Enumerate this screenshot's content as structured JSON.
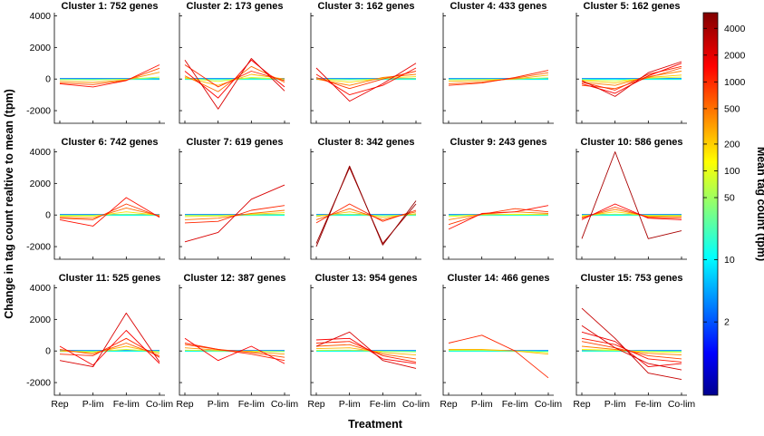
{
  "chart_data": {
    "type": "line",
    "layout": "small-multiples 3x5",
    "xlabel": "Treatment",
    "ylabel": "Change in tag count realtive to mean (tpm)",
    "categories": [
      "Rep",
      "P-lim",
      "Fe-lim",
      "Co-lim"
    ],
    "yticks": [
      "4000",
      "2000",
      "0",
      "-2000"
    ],
    "ylim": [
      -2800,
      4200
    ],
    "colorbar": {
      "label": "Mean tag count (tpm)",
      "scale": "log",
      "range": [
        0.3,
        6000
      ],
      "ticks": [
        {
          "value": 4000,
          "label": "4000"
        },
        {
          "value": 2000,
          "label": "2000"
        },
        {
          "value": 1000,
          "label": "1000"
        },
        {
          "value": 500,
          "label": "500"
        },
        {
          "value": 200,
          "label": "200"
        },
        {
          "value": 100,
          "label": "100"
        },
        {
          "value": 50,
          "label": "50"
        },
        {
          "value": 10,
          "label": "10"
        },
        {
          "value": 2,
          "label": "2"
        }
      ]
    },
    "panels": [
      {
        "title": "Cluster 1: 752 genes",
        "series": [
          {
            "mean": 1500,
            "values": [
              -300,
              -500,
              -100,
              900
            ]
          },
          {
            "mean": 800,
            "values": [
              -250,
              -350,
              -80,
              680
            ]
          },
          {
            "mean": 400,
            "values": [
              -150,
              -220,
              -60,
              430
            ]
          },
          {
            "mean": 80,
            "values": [
              -40,
              -60,
              -20,
              120
            ]
          },
          {
            "mean": 20,
            "values": [
              -10,
              -15,
              -5,
              30
            ]
          },
          {
            "mean": 4,
            "values": [
              0,
              0,
              0,
              0
            ]
          }
        ]
      },
      {
        "title": "Cluster 2: 173 genes",
        "series": [
          {
            "mean": 2500,
            "values": [
              1200,
              -1900,
              1300,
              -750
            ]
          },
          {
            "mean": 1800,
            "values": [
              500,
              -1200,
              1200,
              -500
            ]
          },
          {
            "mean": 1200,
            "values": [
              900,
              -500,
              500,
              -100
            ]
          },
          {
            "mean": 600,
            "values": [
              200,
              -800,
              800,
              -200
            ]
          },
          {
            "mean": 300,
            "values": [
              100,
              -400,
              300,
              0
            ]
          },
          {
            "mean": 100,
            "values": [
              50,
              -150,
              100,
              0
            ]
          },
          {
            "mean": 30,
            "values": [
              20,
              -40,
              30,
              -10
            ]
          }
        ]
      },
      {
        "title": "Cluster 3: 162 genes",
        "series": [
          {
            "mean": 2200,
            "values": [
              700,
              -1400,
              -300,
              1000
            ]
          },
          {
            "mean": 1500,
            "values": [
              300,
              -1000,
              -400,
              700
            ]
          },
          {
            "mean": 1000,
            "values": [
              100,
              -600,
              0,
              500
            ]
          },
          {
            "mean": 500,
            "values": [
              0,
              -400,
              100,
              300
            ]
          },
          {
            "mean": 200,
            "values": [
              0,
              -200,
              50,
              150
            ]
          },
          {
            "mean": 50,
            "values": [
              0,
              -50,
              20,
              30
            ]
          }
        ]
      },
      {
        "title": "Cluster 4: 433 genes",
        "series": [
          {
            "mean": 1200,
            "values": [
              -400,
              -250,
              100,
              550
            ]
          },
          {
            "mean": 700,
            "values": [
              -300,
              -200,
              50,
              400
            ]
          },
          {
            "mean": 300,
            "values": [
              -150,
              -100,
              0,
              250
            ]
          },
          {
            "mean": 80,
            "values": [
              -50,
              -30,
              0,
              80
            ]
          },
          {
            "mean": 10,
            "values": [
              -5,
              -5,
              0,
              10
            ]
          }
        ]
      },
      {
        "title": "Cluster 5: 162 genes",
        "series": [
          {
            "mean": 2500,
            "values": [
              -100,
              -1100,
              400,
              1100
            ]
          },
          {
            "mean": 1800,
            "values": [
              -300,
              -900,
              200,
              1000
            ]
          },
          {
            "mean": 1200,
            "values": [
              -200,
              -700,
              300,
              800
            ]
          },
          {
            "mean": 800,
            "values": [
              -400,
              -600,
              100,
              700
            ]
          },
          {
            "mean": 500,
            "values": [
              -200,
              -400,
              150,
              500
            ]
          },
          {
            "mean": 250,
            "values": [
              -100,
              -250,
              100,
              250
            ]
          },
          {
            "mean": 100,
            "values": [
              -50,
              -120,
              50,
              120
            ]
          }
        ]
      },
      {
        "title": "Cluster 6: 742 genes",
        "series": [
          {
            "mean": 1500,
            "values": [
              -300,
              -700,
              1100,
              -150
            ]
          },
          {
            "mean": 1000,
            "values": [
              -200,
              -300,
              700,
              -100
            ]
          },
          {
            "mean": 600,
            "values": [
              -150,
              -200,
              450,
              -50
            ]
          },
          {
            "mean": 200,
            "values": [
              -80,
              -80,
              200,
              -20
            ]
          },
          {
            "mean": 50,
            "values": [
              -20,
              -20,
              50,
              0
            ]
          }
        ]
      },
      {
        "title": "Cluster 7: 619 genes",
        "series": [
          {
            "mean": 2500,
            "values": [
              -1700,
              -1100,
              1000,
              1900
            ]
          },
          {
            "mean": 1200,
            "values": [
              -500,
              -400,
              300,
              600
            ]
          },
          {
            "mean": 600,
            "values": [
              -300,
              -200,
              100,
              300
            ]
          },
          {
            "mean": 200,
            "values": [
              -100,
              -80,
              50,
              150
            ]
          },
          {
            "mean": 50,
            "values": [
              -20,
              -20,
              10,
              40
            ]
          }
        ]
      },
      {
        "title": "Cluster 8: 342 genes",
        "series": [
          {
            "mean": 5000,
            "values": [
              -2000,
              3100,
              -1900,
              900
            ]
          },
          {
            "mean": 4500,
            "values": [
              -1800,
              3000,
              -1800,
              700
            ]
          },
          {
            "mean": 1200,
            "values": [
              -500,
              700,
              -400,
              300
            ]
          },
          {
            "mean": 700,
            "values": [
              -300,
              400,
              -300,
              200
            ]
          },
          {
            "mean": 250,
            "values": [
              -100,
              200,
              -150,
              80
            ]
          },
          {
            "mean": 60,
            "values": [
              -30,
              50,
              -40,
              20
            ]
          }
        ]
      },
      {
        "title": "Cluster 9: 243 genes",
        "series": [
          {
            "mean": 1500,
            "values": [
              -900,
              100,
              200,
              600
            ]
          },
          {
            "mean": 1000,
            "values": [
              -600,
              50,
              400,
              200
            ]
          },
          {
            "mean": 500,
            "values": [
              -300,
              50,
              200,
              100
            ]
          },
          {
            "mean": 150,
            "values": [
              -100,
              20,
              50,
              30
            ]
          },
          {
            "mean": 30,
            "values": [
              -20,
              5,
              10,
              5
            ]
          }
        ]
      },
      {
        "title": "Cluster 10: 586 genes",
        "series": [
          {
            "mean": 4000,
            "values": [
              -1500,
              4000,
              -1500,
              -1000
            ]
          },
          {
            "mean": 1800,
            "values": [
              -300,
              700,
              -200,
              -300
            ]
          },
          {
            "mean": 1000,
            "values": [
              -200,
              500,
              -150,
              -200
            ]
          },
          {
            "mean": 500,
            "values": [
              -150,
              350,
              -100,
              -100
            ]
          },
          {
            "mean": 200,
            "values": [
              -80,
              200,
              -60,
              -60
            ]
          },
          {
            "mean": 50,
            "values": [
              -20,
              50,
              -20,
              -10
            ]
          }
        ]
      },
      {
        "title": "Cluster 11: 525 genes",
        "series": [
          {
            "mean": 2500,
            "values": [
              -600,
              -1000,
              2400,
              -700
            ]
          },
          {
            "mean": 1800,
            "values": [
              300,
              -900,
              1300,
              -800
            ]
          },
          {
            "mean": 1200,
            "values": [
              -200,
              -300,
              800,
              -400
            ]
          },
          {
            "mean": 700,
            "values": [
              100,
              -200,
              500,
              -300
            ]
          },
          {
            "mean": 300,
            "values": [
              0,
              -100,
              300,
              -150
            ]
          },
          {
            "mean": 100,
            "values": [
              0,
              -50,
              100,
              -50
            ]
          }
        ]
      },
      {
        "title": "Cluster 12: 387 genes",
        "series": [
          {
            "mean": 1800,
            "values": [
              800,
              -600,
              300,
              -800
            ]
          },
          {
            "mean": 1200,
            "values": [
              500,
              100,
              -200,
              -600
            ]
          },
          {
            "mean": 800,
            "values": [
              400,
              100,
              -100,
              -400
            ]
          },
          {
            "mean": 400,
            "values": [
              200,
              50,
              -50,
              -200
            ]
          },
          {
            "mean": 100,
            "values": [
              50,
              10,
              -20,
              -40
            ]
          }
        ]
      },
      {
        "title": "Cluster 13: 954 genes",
        "series": [
          {
            "mean": 2500,
            "values": [
              300,
              1200,
              -600,
              -1100
            ]
          },
          {
            "mean": 1800,
            "values": [
              700,
              800,
              -500,
              -800
            ]
          },
          {
            "mean": 1200,
            "values": [
              500,
              600,
              -300,
              -700
            ]
          },
          {
            "mean": 700,
            "values": [
              300,
              400,
              -200,
              -500
            ]
          },
          {
            "mean": 300,
            "values": [
              150,
              200,
              -100,
              -250
            ]
          },
          {
            "mean": 80,
            "values": [
              40,
              50,
              -30,
              -60
            ]
          }
        ]
      },
      {
        "title": "Cluster 14: 466 genes",
        "series": [
          {
            "mean": 1200,
            "values": [
              500,
              1000,
              0,
              -1700
            ]
          },
          {
            "mean": 300,
            "values": [
              100,
              100,
              0,
              -200
            ]
          },
          {
            "mean": 100,
            "values": [
              50,
              50,
              0,
              -100
            ]
          },
          {
            "mean": 20,
            "values": [
              10,
              10,
              0,
              -20
            ]
          }
        ]
      },
      {
        "title": "Cluster 15: 753 genes",
        "series": [
          {
            "mean": 3000,
            "values": [
              2700,
              800,
              -1400,
              -1800
            ]
          },
          {
            "mean": 2500,
            "values": [
              1600,
              200,
              -800,
              -1200
            ]
          },
          {
            "mean": 2000,
            "values": [
              1200,
              600,
              -1000,
              -800
            ]
          },
          {
            "mean": 1400,
            "values": [
              800,
              400,
              -500,
              -700
            ]
          },
          {
            "mean": 900,
            "values": [
              600,
              200,
              -300,
              -500
            ]
          },
          {
            "mean": 500,
            "values": [
              300,
              100,
              -150,
              -250
            ]
          },
          {
            "mean": 150,
            "values": [
              100,
              50,
              -50,
              -100
            ]
          },
          {
            "mean": 30,
            "values": [
              20,
              10,
              -10,
              -20
            ]
          }
        ]
      }
    ]
  }
}
